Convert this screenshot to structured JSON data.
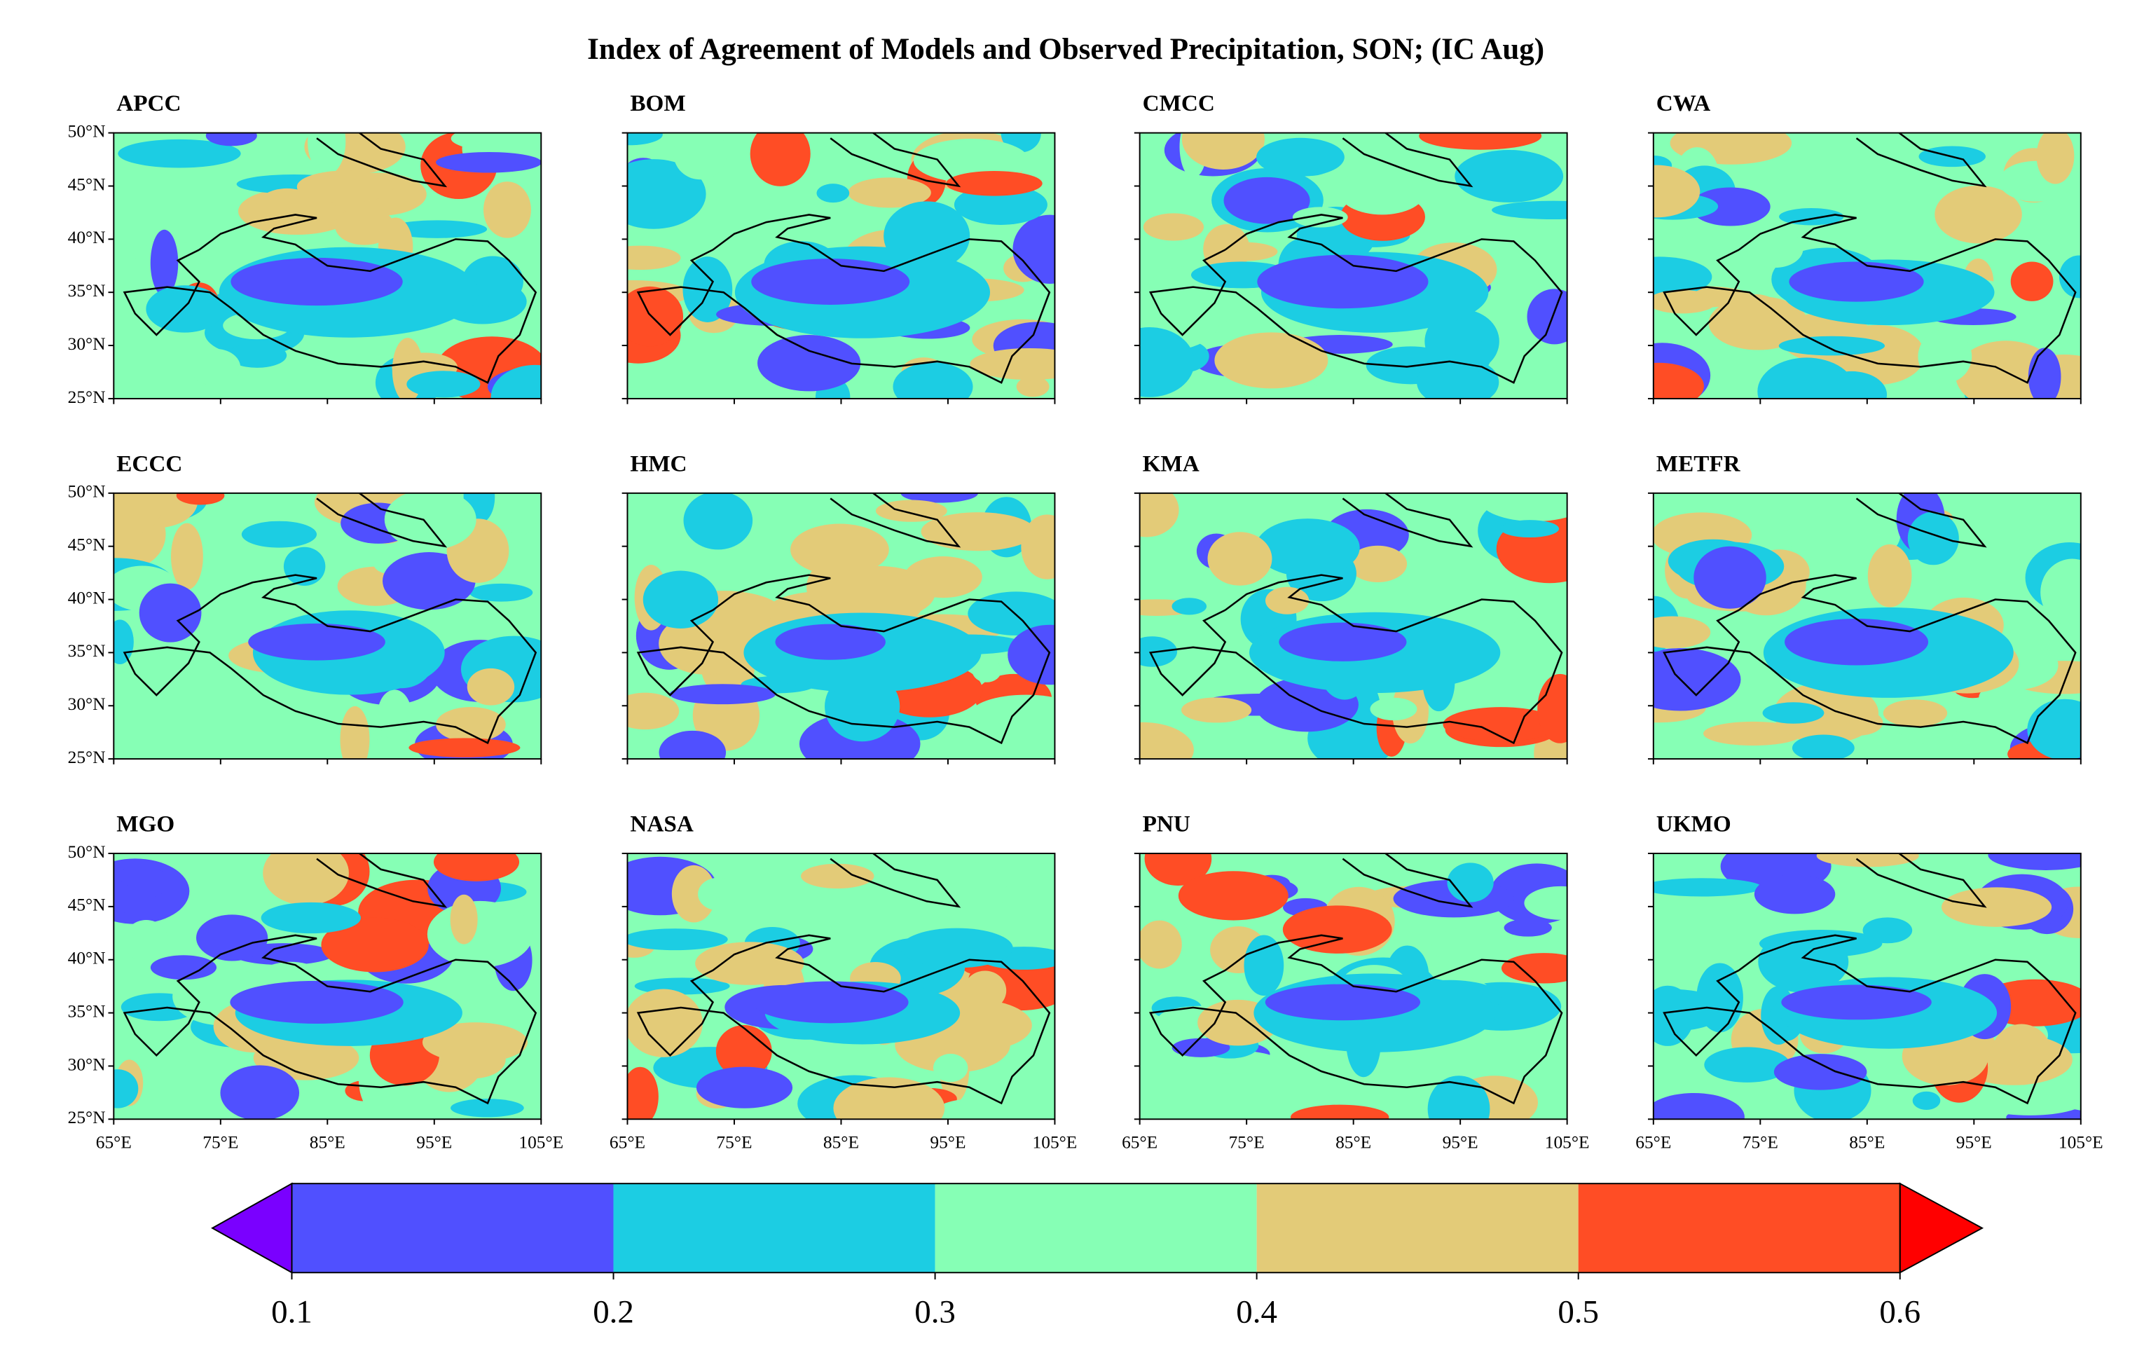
{
  "chart_data": {
    "type": "contour",
    "title": "Index of Agreement of Models and Observed Precipitation, SON;  (IC  Aug)",
    "panels": [
      "APCC",
      "BOM",
      "CMCC",
      "CWA",
      "ECCC",
      "HMC",
      "KMA",
      "METFR",
      "MGO",
      "NASA",
      "PNU",
      "UKMO"
    ],
    "xlim": [
      65,
      105
    ],
    "ylim": [
      25,
      50
    ],
    "xticks": [
      {
        "value": 65,
        "label": "65°E"
      },
      {
        "value": 75,
        "label": "75°E"
      },
      {
        "value": 85,
        "label": "85°E"
      },
      {
        "value": 95,
        "label": "95°E"
      },
      {
        "value": 105,
        "label": "105°E"
      }
    ],
    "yticks": [
      {
        "value": 25,
        "label": "25°N"
      },
      {
        "value": 30,
        "label": "30°N"
      },
      {
        "value": 35,
        "label": "35°N"
      },
      {
        "value": 40,
        "label": "40°N"
      },
      {
        "value": 45,
        "label": "45°N"
      },
      {
        "value": 50,
        "label": "50°N"
      }
    ],
    "colorbar": {
      "levels": [
        0.1,
        0.2,
        0.3,
        0.4,
        0.5,
        0.6
      ],
      "colors": [
        "#5050ff",
        "#1ccde3",
        "#86ffb5",
        "#e3cb78",
        "#ff4d25"
      ],
      "under_color": "#7a00ff",
      "over_color": "#ff0000",
      "extend": "both"
    }
  }
}
